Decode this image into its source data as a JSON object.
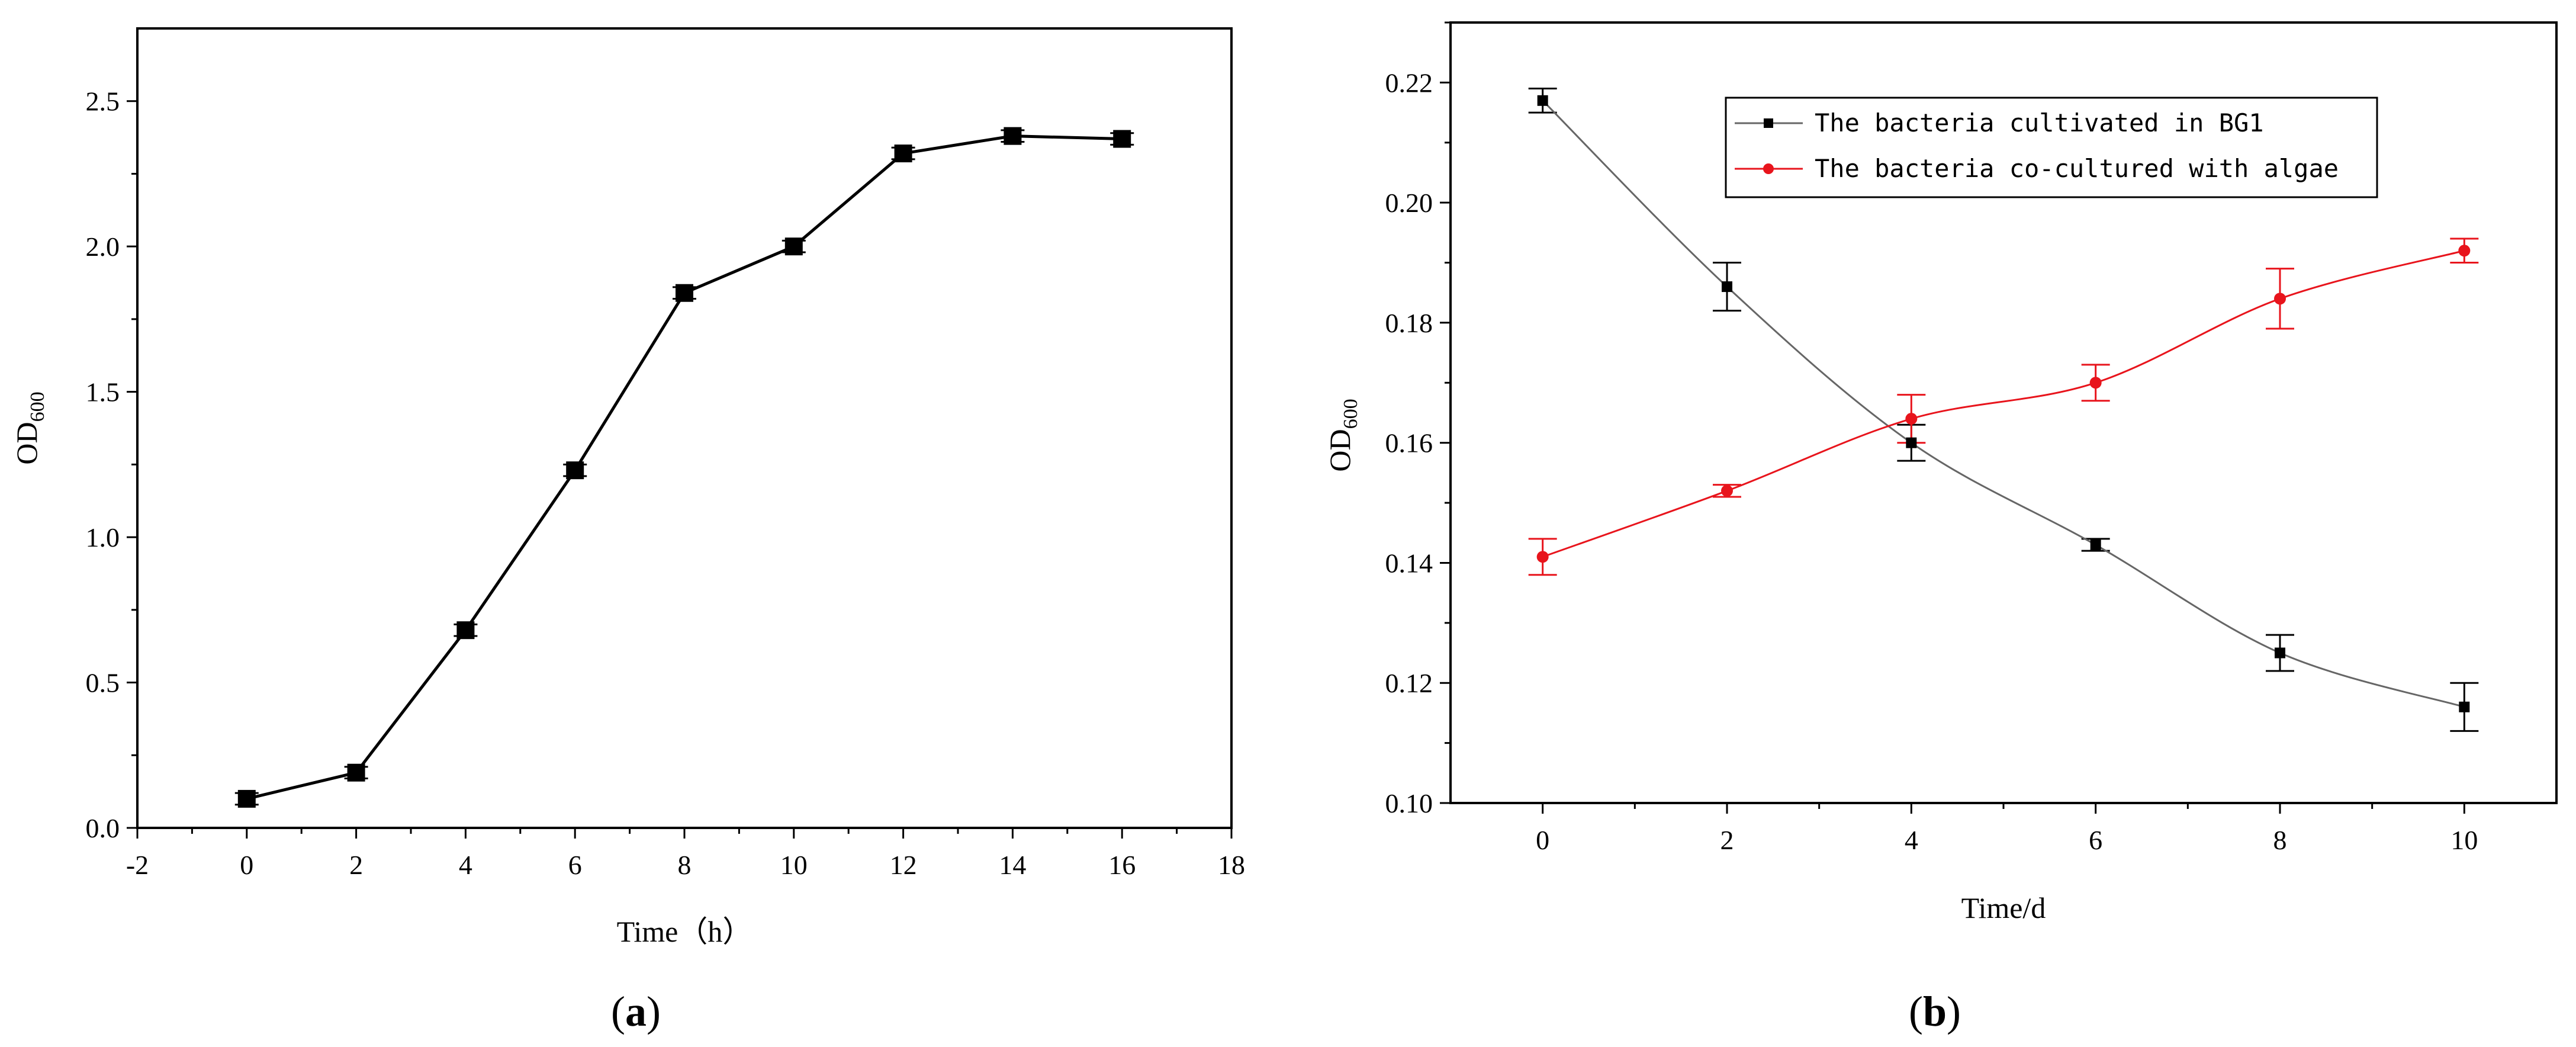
{
  "chart_data": [
    {
      "type": "line",
      "panel_label": {
        "open": "(",
        "letter": "a",
        "close": ")"
      },
      "title": "",
      "xlabel": "Time（h）",
      "ylabel_main": "OD",
      "ylabel_sub": "600",
      "xlim": [
        -2,
        18
      ],
      "ylim": [
        0,
        2.75
      ],
      "xticks": [
        -2,
        0,
        2,
        4,
        6,
        8,
        10,
        12,
        14,
        16,
        18
      ],
      "yticks": [
        0,
        0.5,
        1.0,
        1.5,
        2.0,
        2.5
      ],
      "ytick_labels": [
        "0.0",
        "0.5",
        "1.0",
        "1.5",
        "2.0",
        "2.5"
      ],
      "grid": false,
      "series": [
        {
          "x": [
            0,
            2,
            4,
            6,
            8,
            10,
            12,
            14,
            16
          ],
          "values": [
            0.1,
            0.19,
            0.68,
            1.23,
            1.84,
            2.0,
            2.32,
            2.38,
            2.37
          ],
          "errors": [
            0.02,
            0.02,
            0.02,
            0.02,
            0.02,
            0.02,
            0.02,
            0.02,
            0.02
          ],
          "color": "#000000",
          "marker": "square"
        }
      ]
    },
    {
      "type": "line",
      "panel_label": {
        "open": "(",
        "letter": "b",
        "close": ")"
      },
      "title": "",
      "xlabel": "Time/d",
      "ylabel_main": "OD",
      "ylabel_sub": "600",
      "xlim": [
        -1,
        11
      ],
      "ylim": [
        0.1,
        0.23
      ],
      "xticks": [
        0,
        2,
        4,
        6,
        8,
        10
      ],
      "yticks": [
        0.1,
        0.12,
        0.14,
        0.16,
        0.18,
        0.2,
        0.22
      ],
      "ytick_labels": [
        "0.10",
        "0.12",
        "0.14",
        "0.16",
        "0.18",
        "0.20",
        "0.22"
      ],
      "grid": false,
      "legend_position": "top-center",
      "series": [
        {
          "name": "The bacteria cultivated in BG1",
          "x": [
            0,
            2,
            4,
            6,
            8,
            10
          ],
          "values": [
            0.217,
            0.186,
            0.16,
            0.143,
            0.125,
            0.116
          ],
          "errors": [
            0.002,
            0.004,
            0.003,
            0.001,
            0.003,
            0.004
          ],
          "color": "#000000",
          "line_color": "#666666",
          "marker": "square"
        },
        {
          "name": "The bacteria co-cultured with algae",
          "x": [
            0,
            2,
            4,
            6,
            8,
            10
          ],
          "values": [
            0.141,
            0.152,
            0.164,
            0.17,
            0.184,
            0.192
          ],
          "errors": [
            0.003,
            0.001,
            0.004,
            0.003,
            0.005,
            0.002
          ],
          "color": "#e8141c",
          "line_color": "#e8141c",
          "marker": "circle"
        }
      ]
    }
  ]
}
